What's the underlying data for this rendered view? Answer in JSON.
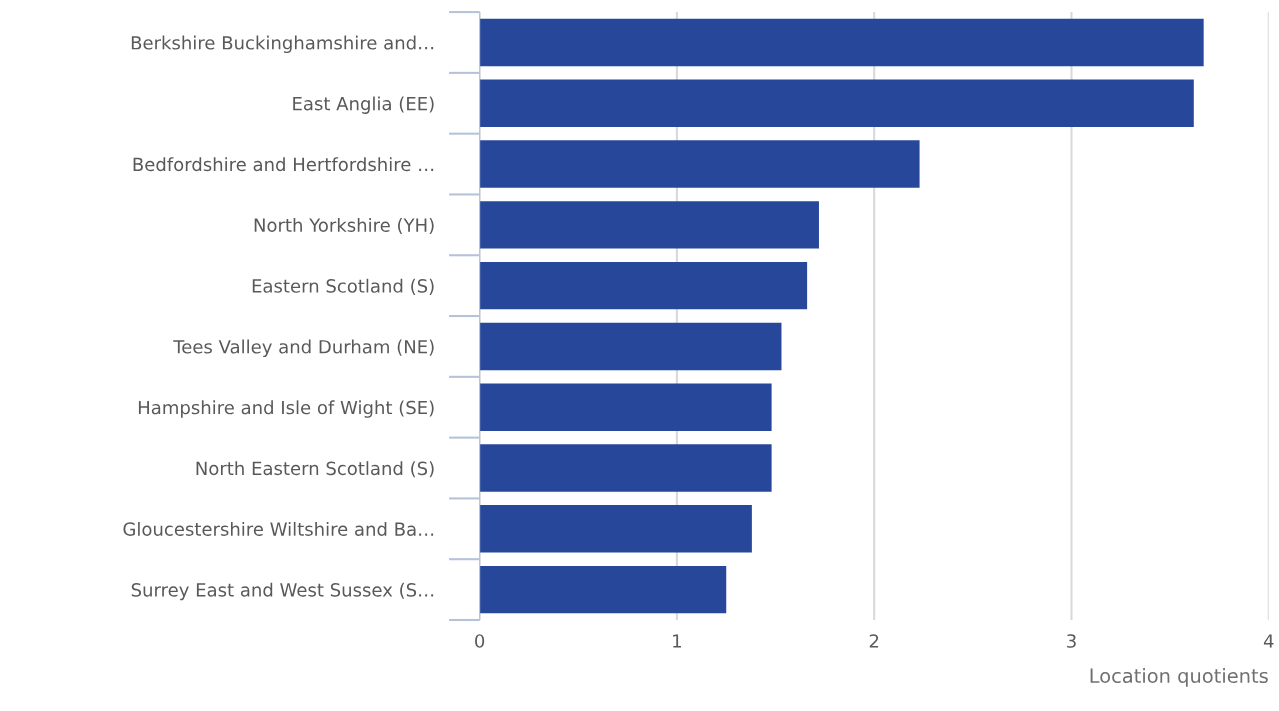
{
  "chart_data": {
    "type": "bar",
    "orientation": "horizontal",
    "xlabel": "Location quotients",
    "categories": [
      "Berkshire Buckinghamshire and…",
      "East Anglia (EE)",
      "Bedfordshire and Hertfordshire …",
      "North Yorkshire (YH)",
      "Eastern Scotland (S)",
      "Tees Valley and Durham (NE)",
      "Hampshire and Isle of Wight (SE)",
      "North Eastern Scotland (S)",
      "Gloucestershire Wiltshire and Ba…",
      "Surrey East and West Sussex (S…"
    ],
    "values": [
      3.67,
      3.62,
      2.23,
      1.72,
      1.66,
      1.53,
      1.48,
      1.48,
      1.38,
      1.25
    ],
    "color": "#27479a",
    "xlim": [
      0,
      4
    ],
    "xticks": [
      0,
      1,
      2,
      3,
      4
    ],
    "grid": "x"
  }
}
